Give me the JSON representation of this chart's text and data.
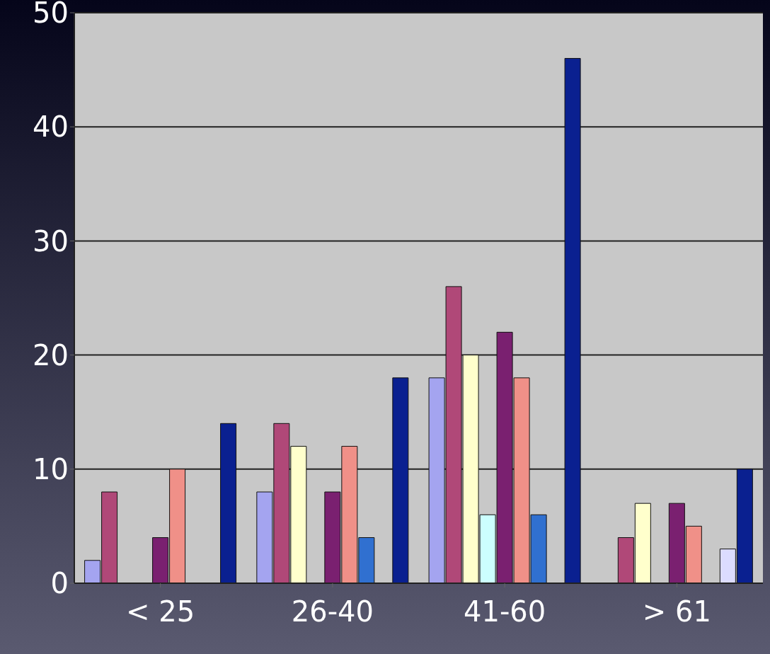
{
  "chart_data": {
    "type": "bar",
    "categories": [
      "< 25",
      "26-40",
      "41-60",
      "> 61"
    ],
    "series": [
      {
        "color": "#a4a4f0",
        "values": [
          2,
          8,
          18,
          null
        ]
      },
      {
        "color": "#b04878",
        "values": [
          8,
          14,
          26,
          4
        ]
      },
      {
        "color": "#ffffcc",
        "values": [
          null,
          12,
          20,
          7
        ]
      },
      {
        "color": "#ccffff",
        "values": [
          null,
          null,
          6,
          null
        ]
      },
      {
        "color": "#7a2070",
        "values": [
          4,
          8,
          22,
          7
        ]
      },
      {
        "color": "#f09088",
        "values": [
          10,
          12,
          18,
          5
        ]
      },
      {
        "color": "#3070d0",
        "values": [
          null,
          4,
          6,
          null
        ]
      },
      {
        "color": "#dcdcff",
        "values": [
          null,
          null,
          null,
          3
        ]
      },
      {
        "color": "#0a2090",
        "values": [
          14,
          18,
          46,
          10
        ]
      }
    ],
    "ylim": [
      0,
      50
    ],
    "yticks": [
      0,
      10,
      20,
      30,
      40,
      50
    ],
    "grid": "y",
    "legend": false
  }
}
